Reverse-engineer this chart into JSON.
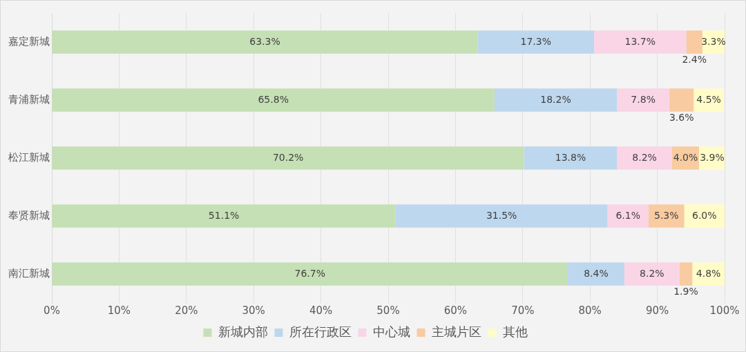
{
  "chart_data": {
    "type": "bar",
    "orientation": "horizontal",
    "stacked": true,
    "grid": "x",
    "legend": "bottom",
    "categories": [
      "嘉定新城",
      "青浦新城",
      "松江新城",
      "奉贤新城",
      "南汇新城"
    ],
    "series": [
      {
        "name": "新城内部",
        "color": "#c5e0b4",
        "values": [
          63.3,
          65.8,
          70.2,
          51.1,
          76.7
        ],
        "value_labels": [
          "63.3%",
          "65.8%",
          "70.2%",
          "51.1%",
          "76.7%"
        ]
      },
      {
        "name": "所在行政区",
        "color": "#bdd7ee",
        "values": [
          17.3,
          18.2,
          13.8,
          31.5,
          8.4
        ],
        "value_labels": [
          "17.3%",
          "18.2%",
          "13.8%",
          "31.5%",
          "8.4%"
        ]
      },
      {
        "name": "中心城",
        "color": "#f9d5e6",
        "values": [
          13.7,
          7.8,
          8.2,
          6.1,
          8.2
        ],
        "value_labels": [
          "13.7%",
          "7.8%",
          "8.2%",
          "6.1%",
          "8.2%"
        ]
      },
      {
        "name": "主城片区",
        "color": "#f8cba0",
        "values": [
          2.4,
          3.6,
          4.0,
          5.3,
          1.9
        ],
        "value_labels": [
          "2.4%",
          "3.6%",
          "4.0%",
          "5.3%",
          "1.9%"
        ]
      },
      {
        "name": "其他",
        "color": "#fffcc8",
        "values": [
          3.3,
          4.5,
          3.9,
          6.0,
          4.8
        ],
        "value_labels": [
          "3.3%",
          "4.5%",
          "3.9%",
          "6.0%",
          "4.8%"
        ]
      }
    ],
    "xlim": [
      0,
      100
    ],
    "xticks": [
      {
        "value": 0,
        "label": "0%"
      },
      {
        "value": 10,
        "label": "10%"
      },
      {
        "value": 20,
        "label": "20%"
      },
      {
        "value": 30,
        "label": "30%"
      },
      {
        "value": 40,
        "label": "40%"
      },
      {
        "value": 50,
        "label": "50%"
      },
      {
        "value": 60,
        "label": "60%"
      },
      {
        "value": 70,
        "label": "70%"
      },
      {
        "value": 80,
        "label": "80%"
      },
      {
        "value": 90,
        "label": "90%"
      },
      {
        "value": 100,
        "label": "100%"
      }
    ]
  }
}
